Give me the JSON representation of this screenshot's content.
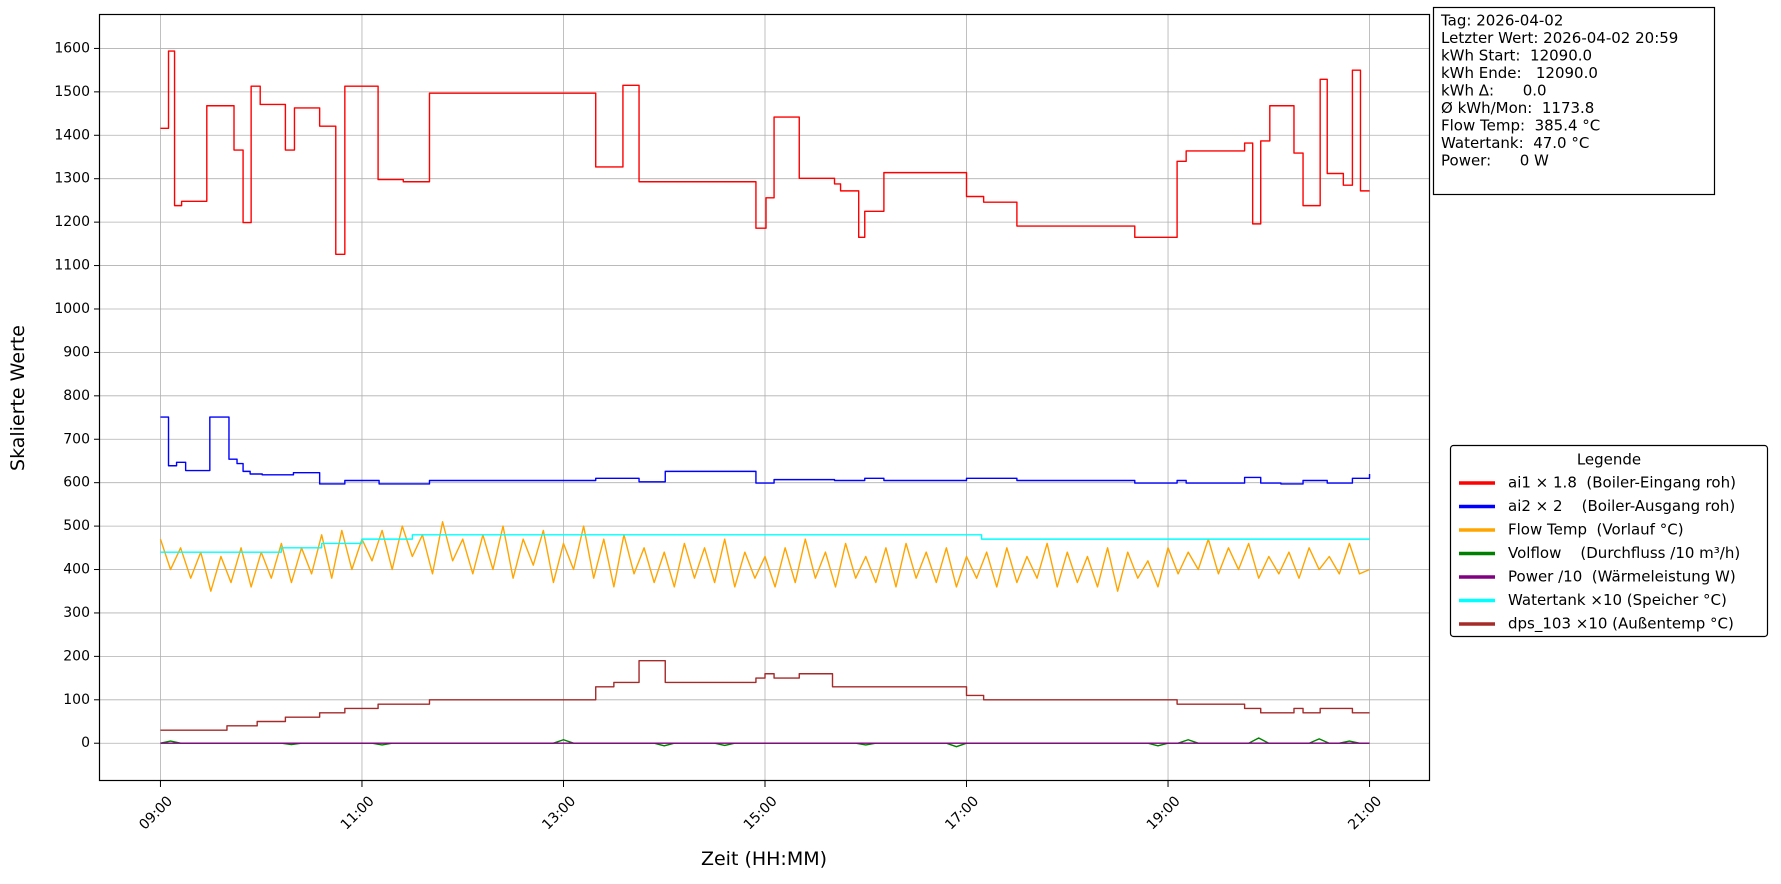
{
  "chart_data": {
    "type": "line",
    "xlabel": "Zeit (HH:MM)",
    "ylabel": "Skalierte Werte",
    "xlim": [
      8.4,
      21.6
    ],
    "xticks": [
      {
        "value": 9,
        "label": "09:00"
      },
      {
        "value": 11,
        "label": "11:00"
      },
      {
        "value": 13,
        "label": "13:00"
      },
      {
        "value": 15,
        "label": "15:00"
      },
      {
        "value": 17,
        "label": "17:00"
      },
      {
        "value": 19,
        "label": "19:00"
      },
      {
        "value": 21,
        "label": "21:00"
      }
    ],
    "ylim": [
      -87,
      1677
    ],
    "yticks": [
      0,
      100,
      200,
      300,
      400,
      500,
      600,
      700,
      800,
      900,
      1000,
      1100,
      1200,
      1300,
      1400,
      1500,
      1600
    ],
    "grid": true,
    "legend_title": "Legende",
    "legend_position": "right",
    "x": [
      9,
      9.1,
      9.2,
      9.3,
      9.4,
      9.5,
      9.6,
      9.7,
      9.8,
      9.9,
      10,
      10.1,
      10.2,
      10.3,
      10.4,
      10.5,
      10.6,
      10.7,
      10.8,
      10.9,
      11,
      11.1,
      11.2,
      11.3,
      11.4,
      11.5,
      11.6,
      11.7,
      11.8,
      11.9,
      12,
      12.1,
      12.2,
      12.3,
      12.4,
      12.5,
      12.6,
      12.7,
      12.8,
      12.9,
      13,
      13.1,
      13.2,
      13.3,
      13.4,
      13.5,
      13.6,
      13.7,
      13.8,
      13.9,
      14,
      14.1,
      14.2,
      14.3,
      14.4,
      14.5,
      14.6,
      14.7,
      14.8,
      14.9,
      15,
      15.1,
      15.2,
      15.3,
      15.4,
      15.5,
      15.6,
      15.7,
      15.8,
      15.9,
      16,
      16.1,
      16.2,
      16.3,
      16.4,
      16.5,
      16.6,
      16.7,
      16.8,
      16.9,
      17,
      17.1,
      17.2,
      17.3,
      17.4,
      17.5,
      17.6,
      17.7,
      17.8,
      17.9,
      18,
      18.1,
      18.2,
      18.3,
      18.4,
      18.5,
      18.6,
      18.7,
      18.8,
      18.9,
      19,
      19.1,
      19.2,
      19.3,
      19.4,
      19.5,
      19.6,
      19.7,
      19.8,
      19.9,
      20,
      20.1,
      20.2,
      20.3,
      20.4,
      20.5,
      20.6,
      20.7,
      20.8,
      20.9,
      21
    ],
    "series": [
      {
        "name": "ai1 × 1.8  (Boiler-Eingang roh)",
        "color": "#ff0000",
        "step": true,
        "x": [
          9.0,
          9.08,
          9.14,
          9.21,
          9.46,
          9.73,
          9.82,
          9.9,
          9.99,
          10.24,
          10.33,
          10.58,
          10.74,
          10.83,
          11.16,
          11.41,
          11.67,
          13.32,
          13.59,
          13.75,
          14.91,
          15.01,
          15.09,
          15.34,
          15.69,
          15.75,
          15.93,
          15.99,
          16.18,
          17.0,
          17.17,
          17.5,
          18.67,
          19.09,
          19.18,
          19.76,
          19.84,
          19.92,
          20.01,
          20.25,
          20.34,
          20.51,
          20.58,
          20.74,
          20.83,
          20.91,
          21.0
        ],
        "values": [
          1416,
          1594,
          1238,
          1248,
          1468,
          1366,
          1199,
          1513,
          1471,
          1366,
          1463,
          1421,
          1126,
          1513,
          1298,
          1293,
          1497,
          1327,
          1515,
          1293,
          1186,
          1256,
          1442,
          1301,
          1288,
          1272,
          1165,
          1225,
          1314,
          1259,
          1246,
          1191,
          1165,
          1340,
          1364,
          1382,
          1196,
          1387,
          1468,
          1359,
          1238,
          1529,
          1312,
          1285,
          1550,
          1272,
          1272
        ]
      },
      {
        "name": "ai2 × 2    (Boiler-Ausgang roh)",
        "color": "#0000ff",
        "step": true,
        "x": [
          9.0,
          9.08,
          9.16,
          9.25,
          9.49,
          9.68,
          9.76,
          9.82,
          9.89,
          10.01,
          10.32,
          10.58,
          10.83,
          11.17,
          11.67,
          13.32,
          13.75,
          14.01,
          14.91,
          15.09,
          15.69,
          15.99,
          16.18,
          17.0,
          17.5,
          18.67,
          19.09,
          19.18,
          19.76,
          19.92,
          20.12,
          20.34,
          20.58,
          20.83,
          21.0
        ],
        "values": [
          751,
          639,
          647,
          628,
          751,
          654,
          644,
          626,
          620,
          618,
          623,
          597,
          605,
          597,
          605,
          610,
          602,
          626,
          599,
          607,
          605,
          610,
          605,
          610,
          605,
          599,
          605,
          599,
          612,
          599,
          597,
          605,
          599,
          610,
          620
        ]
      },
      {
        "name": "Flow Temp  (Vorlauf °C)",
        "color": "#ffa500",
        "values": [
          470,
          400,
          450,
          380,
          440,
          350,
          430,
          370,
          450,
          360,
          440,
          380,
          460,
          370,
          450,
          390,
          480,
          380,
          490,
          400,
          470,
          420,
          490,
          400,
          500,
          430,
          480,
          390,
          510,
          420,
          470,
          390,
          480,
          400,
          500,
          380,
          470,
          410,
          490,
          370,
          460,
          400,
          500,
          380,
          470,
          360,
          480,
          390,
          450,
          370,
          440,
          360,
          460,
          380,
          450,
          370,
          470,
          360,
          440,
          380,
          430,
          360,
          450,
          370,
          470,
          380,
          440,
          360,
          460,
          380,
          430,
          370,
          450,
          360,
          460,
          380,
          440,
          370,
          450,
          360,
          430,
          380,
          440,
          360,
          450,
          370,
          430,
          380,
          460,
          360,
          440,
          370,
          430,
          360,
          450,
          350,
          440,
          380,
          420,
          360,
          450,
          390,
          440,
          400,
          470,
          390,
          450,
          400,
          460,
          380,
          430,
          390,
          440,
          380,
          450,
          400,
          430,
          390,
          460,
          390,
          400
        ]
      },
      {
        "name": "Volflow    (Durchfluss /10 m³/h)",
        "color": "#008000",
        "values": [
          0,
          5,
          0,
          0,
          0,
          0,
          0,
          0,
          0,
          0,
          0,
          0,
          0,
          -3,
          0,
          0,
          0,
          0,
          0,
          0,
          0,
          0,
          -4,
          0,
          0,
          0,
          0,
          0,
          0,
          0,
          0,
          0,
          0,
          0,
          0,
          0,
          0,
          0,
          0,
          0,
          8,
          0,
          0,
          0,
          0,
          0,
          0,
          0,
          0,
          0,
          -6,
          0,
          0,
          0,
          0,
          0,
          -5,
          0,
          0,
          0,
          0,
          0,
          0,
          0,
          0,
          0,
          0,
          0,
          0,
          0,
          -4,
          0,
          0,
          0,
          0,
          0,
          0,
          0,
          0,
          -8,
          0,
          0,
          0,
          0,
          0,
          0,
          0,
          0,
          0,
          0,
          0,
          0,
          0,
          0,
          0,
          0,
          0,
          0,
          0,
          -6,
          0,
          0,
          8,
          0,
          0,
          0,
          0,
          0,
          0,
          12,
          0,
          0,
          0,
          0,
          0,
          10,
          0,
          0,
          5,
          0,
          0
        ]
      },
      {
        "name": "Power /10  (Wärmeleistung W)",
        "color": "#800080",
        "x": [
          9,
          21
        ],
        "values": [
          0,
          0
        ]
      },
      {
        "name": "Watertank ×10 (Speicher °C)",
        "color": "#00ffff",
        "step": true,
        "x": [
          9.0,
          9.8,
          10.2,
          10.6,
          11.0,
          11.5,
          17.15,
          21.0
        ],
        "values": [
          440,
          440,
          450,
          460,
          470,
          480,
          470,
          470
        ]
      },
      {
        "name": "dps_103 ×10 (Außentemp °C)",
        "color": "#a52a2a",
        "step": true,
        "x": [
          9.0,
          9.66,
          9.96,
          10.24,
          10.58,
          10.83,
          11.16,
          11.67,
          13.32,
          13.5,
          13.75,
          14.01,
          14.91,
          15.0,
          15.09,
          15.34,
          15.67,
          17.0,
          17.17,
          19.09,
          19.76,
          19.92,
          20.25,
          20.34,
          20.51,
          20.83,
          21.0
        ],
        "values": [
          30,
          40,
          50,
          60,
          70,
          80,
          90,
          100,
          130,
          140,
          190,
          140,
          150,
          160,
          150,
          160,
          130,
          110,
          100,
          90,
          80,
          70,
          80,
          70,
          80,
          70,
          70
        ]
      }
    ],
    "info_box": {
      "lines": [
        "Tag: 2026-04-02",
        "Letzter Wert: 2026-04-02 20:59",
        "kWh Start:  12090.0",
        "kWh Ende:   12090.0",
        "kWh Δ:      0.0",
        "Ø kWh/Mon:  1173.8",
        "Flow Temp:  385.4 °C",
        "Watertank:  47.0 °C",
        "Power:      0 W"
      ]
    }
  }
}
